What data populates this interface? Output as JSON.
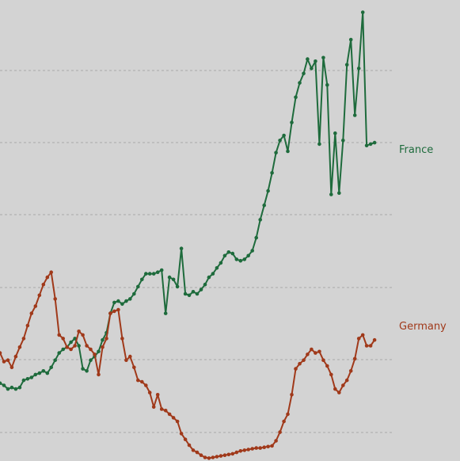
{
  "chart_data": {
    "type": "line",
    "title": "",
    "xlabel": "",
    "ylabel": "",
    "grid": true,
    "legend": "inline-right",
    "ylim": [
      -0.5,
      5.9
    ],
    "xlim": [
      0,
      100
    ],
    "series": [
      {
        "name": "France",
        "color": "#1e6b3c",
        "points": [
          [
            0,
            0.58
          ],
          [
            1,
            0.55
          ],
          [
            2,
            0.5
          ],
          [
            3,
            0.52
          ],
          [
            4,
            0.5
          ],
          [
            5,
            0.52
          ],
          [
            6,
            0.62
          ],
          [
            7,
            0.64
          ],
          [
            8,
            0.66
          ],
          [
            9,
            0.7
          ],
          [
            10,
            0.72
          ],
          [
            11,
            0.75
          ],
          [
            12,
            0.72
          ],
          [
            13,
            0.8
          ],
          [
            14,
            0.9
          ],
          [
            15,
            1.0
          ],
          [
            16,
            1.05
          ],
          [
            17,
            1.08
          ],
          [
            18,
            1.15
          ],
          [
            19,
            1.2
          ],
          [
            20,
            1.1
          ],
          [
            21,
            0.78
          ],
          [
            22,
            0.75
          ],
          [
            23,
            0.9
          ],
          [
            24,
            0.95
          ],
          [
            25,
            1.02
          ],
          [
            26,
            1.18
          ],
          [
            27,
            1.28
          ],
          [
            28,
            1.55
          ],
          [
            29,
            1.7
          ],
          [
            30,
            1.72
          ],
          [
            31,
            1.68
          ],
          [
            32,
            1.72
          ],
          [
            33,
            1.75
          ],
          [
            34,
            1.82
          ],
          [
            35,
            1.92
          ],
          [
            36,
            2.02
          ],
          [
            37,
            2.1
          ],
          [
            38,
            2.1
          ],
          [
            39,
            2.1
          ],
          [
            40,
            2.12
          ],
          [
            41,
            2.15
          ],
          [
            42,
            1.55
          ],
          [
            43,
            2.05
          ],
          [
            44,
            2.02
          ],
          [
            45,
            1.92
          ],
          [
            46,
            2.45
          ],
          [
            47,
            1.82
          ],
          [
            48,
            1.8
          ],
          [
            49,
            1.85
          ],
          [
            50,
            1.82
          ],
          [
            51,
            1.88
          ],
          [
            52,
            1.95
          ],
          [
            53,
            2.05
          ],
          [
            54,
            2.1
          ],
          [
            55,
            2.18
          ],
          [
            56,
            2.25
          ],
          [
            57,
            2.35
          ],
          [
            58,
            2.4
          ],
          [
            59,
            2.38
          ],
          [
            60,
            2.3
          ],
          [
            61,
            2.28
          ],
          [
            62,
            2.3
          ],
          [
            63,
            2.35
          ],
          [
            64,
            2.42
          ],
          [
            65,
            2.6
          ],
          [
            66,
            2.85
          ],
          [
            67,
            3.05
          ],
          [
            68,
            3.25
          ],
          [
            69,
            3.5
          ],
          [
            70,
            3.78
          ],
          [
            71,
            3.95
          ],
          [
            72,
            4.02
          ],
          [
            73,
            3.8
          ],
          [
            74,
            4.2
          ],
          [
            75,
            4.55
          ],
          [
            76,
            4.75
          ],
          [
            77,
            4.88
          ],
          [
            78,
            5.08
          ],
          [
            79,
            4.95
          ],
          [
            80,
            5.05
          ],
          [
            81,
            3.9
          ],
          [
            82,
            5.1
          ],
          [
            83,
            4.72
          ],
          [
            84,
            3.2
          ],
          [
            85,
            4.05
          ],
          [
            86,
            3.22
          ],
          [
            87,
            3.95
          ],
          [
            88,
            5.0
          ],
          [
            89,
            5.35
          ],
          [
            90,
            4.3
          ],
          [
            91,
            4.95
          ],
          [
            92,
            5.73
          ],
          [
            93,
            3.88
          ],
          [
            94,
            3.9
          ],
          [
            95,
            3.92
          ]
        ]
      },
      {
        "name": "Germany",
        "color": "#a0391a",
        "points": [
          [
            0,
            1.0
          ],
          [
            1,
            0.88
          ],
          [
            2,
            0.9
          ],
          [
            3,
            0.8
          ],
          [
            4,
            0.95
          ],
          [
            5,
            1.08
          ],
          [
            6,
            1.2
          ],
          [
            7,
            1.38
          ],
          [
            8,
            1.55
          ],
          [
            9,
            1.65
          ],
          [
            10,
            1.8
          ],
          [
            11,
            1.95
          ],
          [
            12,
            2.05
          ],
          [
            13,
            2.12
          ],
          [
            14,
            1.75
          ],
          [
            15,
            1.25
          ],
          [
            16,
            1.2
          ],
          [
            17,
            1.08
          ],
          [
            18,
            1.05
          ],
          [
            19,
            1.1
          ],
          [
            20,
            1.3
          ],
          [
            21,
            1.25
          ],
          [
            22,
            1.1
          ],
          [
            23,
            1.05
          ],
          [
            24,
            0.98
          ],
          [
            25,
            0.7
          ],
          [
            26,
            1.08
          ],
          [
            27,
            1.2
          ],
          [
            28,
            1.55
          ],
          [
            29,
            1.58
          ],
          [
            30,
            1.6
          ],
          [
            31,
            1.2
          ],
          [
            32,
            0.9
          ],
          [
            33,
            0.95
          ],
          [
            34,
            0.8
          ],
          [
            35,
            0.62
          ],
          [
            36,
            0.6
          ],
          [
            37,
            0.55
          ],
          [
            38,
            0.45
          ],
          [
            39,
            0.25
          ],
          [
            40,
            0.42
          ],
          [
            41,
            0.22
          ],
          [
            42,
            0.2
          ],
          [
            43,
            0.15
          ],
          [
            44,
            0.1
          ],
          [
            45,
            0.05
          ],
          [
            46,
            -0.12
          ],
          [
            47,
            -0.2
          ],
          [
            48,
            -0.28
          ],
          [
            49,
            -0.35
          ],
          [
            50,
            -0.38
          ],
          [
            51,
            -0.42
          ],
          [
            52,
            -0.45
          ],
          [
            53,
            -0.46
          ],
          [
            54,
            -0.45
          ],
          [
            55,
            -0.44
          ],
          [
            56,
            -0.43
          ],
          [
            57,
            -0.42
          ],
          [
            58,
            -0.41
          ],
          [
            59,
            -0.4
          ],
          [
            60,
            -0.38
          ],
          [
            61,
            -0.36
          ],
          [
            62,
            -0.35
          ],
          [
            63,
            -0.34
          ],
          [
            64,
            -0.33
          ],
          [
            65,
            -0.32
          ],
          [
            66,
            -0.32
          ],
          [
            67,
            -0.31
          ],
          [
            68,
            -0.3
          ],
          [
            69,
            -0.29
          ],
          [
            70,
            -0.22
          ],
          [
            71,
            -0.1
          ],
          [
            72,
            0.05
          ],
          [
            73,
            0.15
          ],
          [
            74,
            0.42
          ],
          [
            75,
            0.78
          ],
          [
            76,
            0.85
          ],
          [
            77,
            0.9
          ],
          [
            78,
            0.98
          ],
          [
            79,
            1.05
          ],
          [
            80,
            1.0
          ],
          [
            81,
            1.02
          ],
          [
            82,
            0.9
          ],
          [
            83,
            0.82
          ],
          [
            84,
            0.7
          ],
          [
            85,
            0.5
          ],
          [
            86,
            0.45
          ],
          [
            87,
            0.55
          ],
          [
            88,
            0.62
          ],
          [
            89,
            0.75
          ],
          [
            90,
            0.92
          ],
          [
            91,
            1.2
          ],
          [
            92,
            1.25
          ],
          [
            93,
            1.1
          ],
          [
            94,
            1.1
          ],
          [
            95,
            1.18
          ]
        ]
      }
    ]
  }
}
